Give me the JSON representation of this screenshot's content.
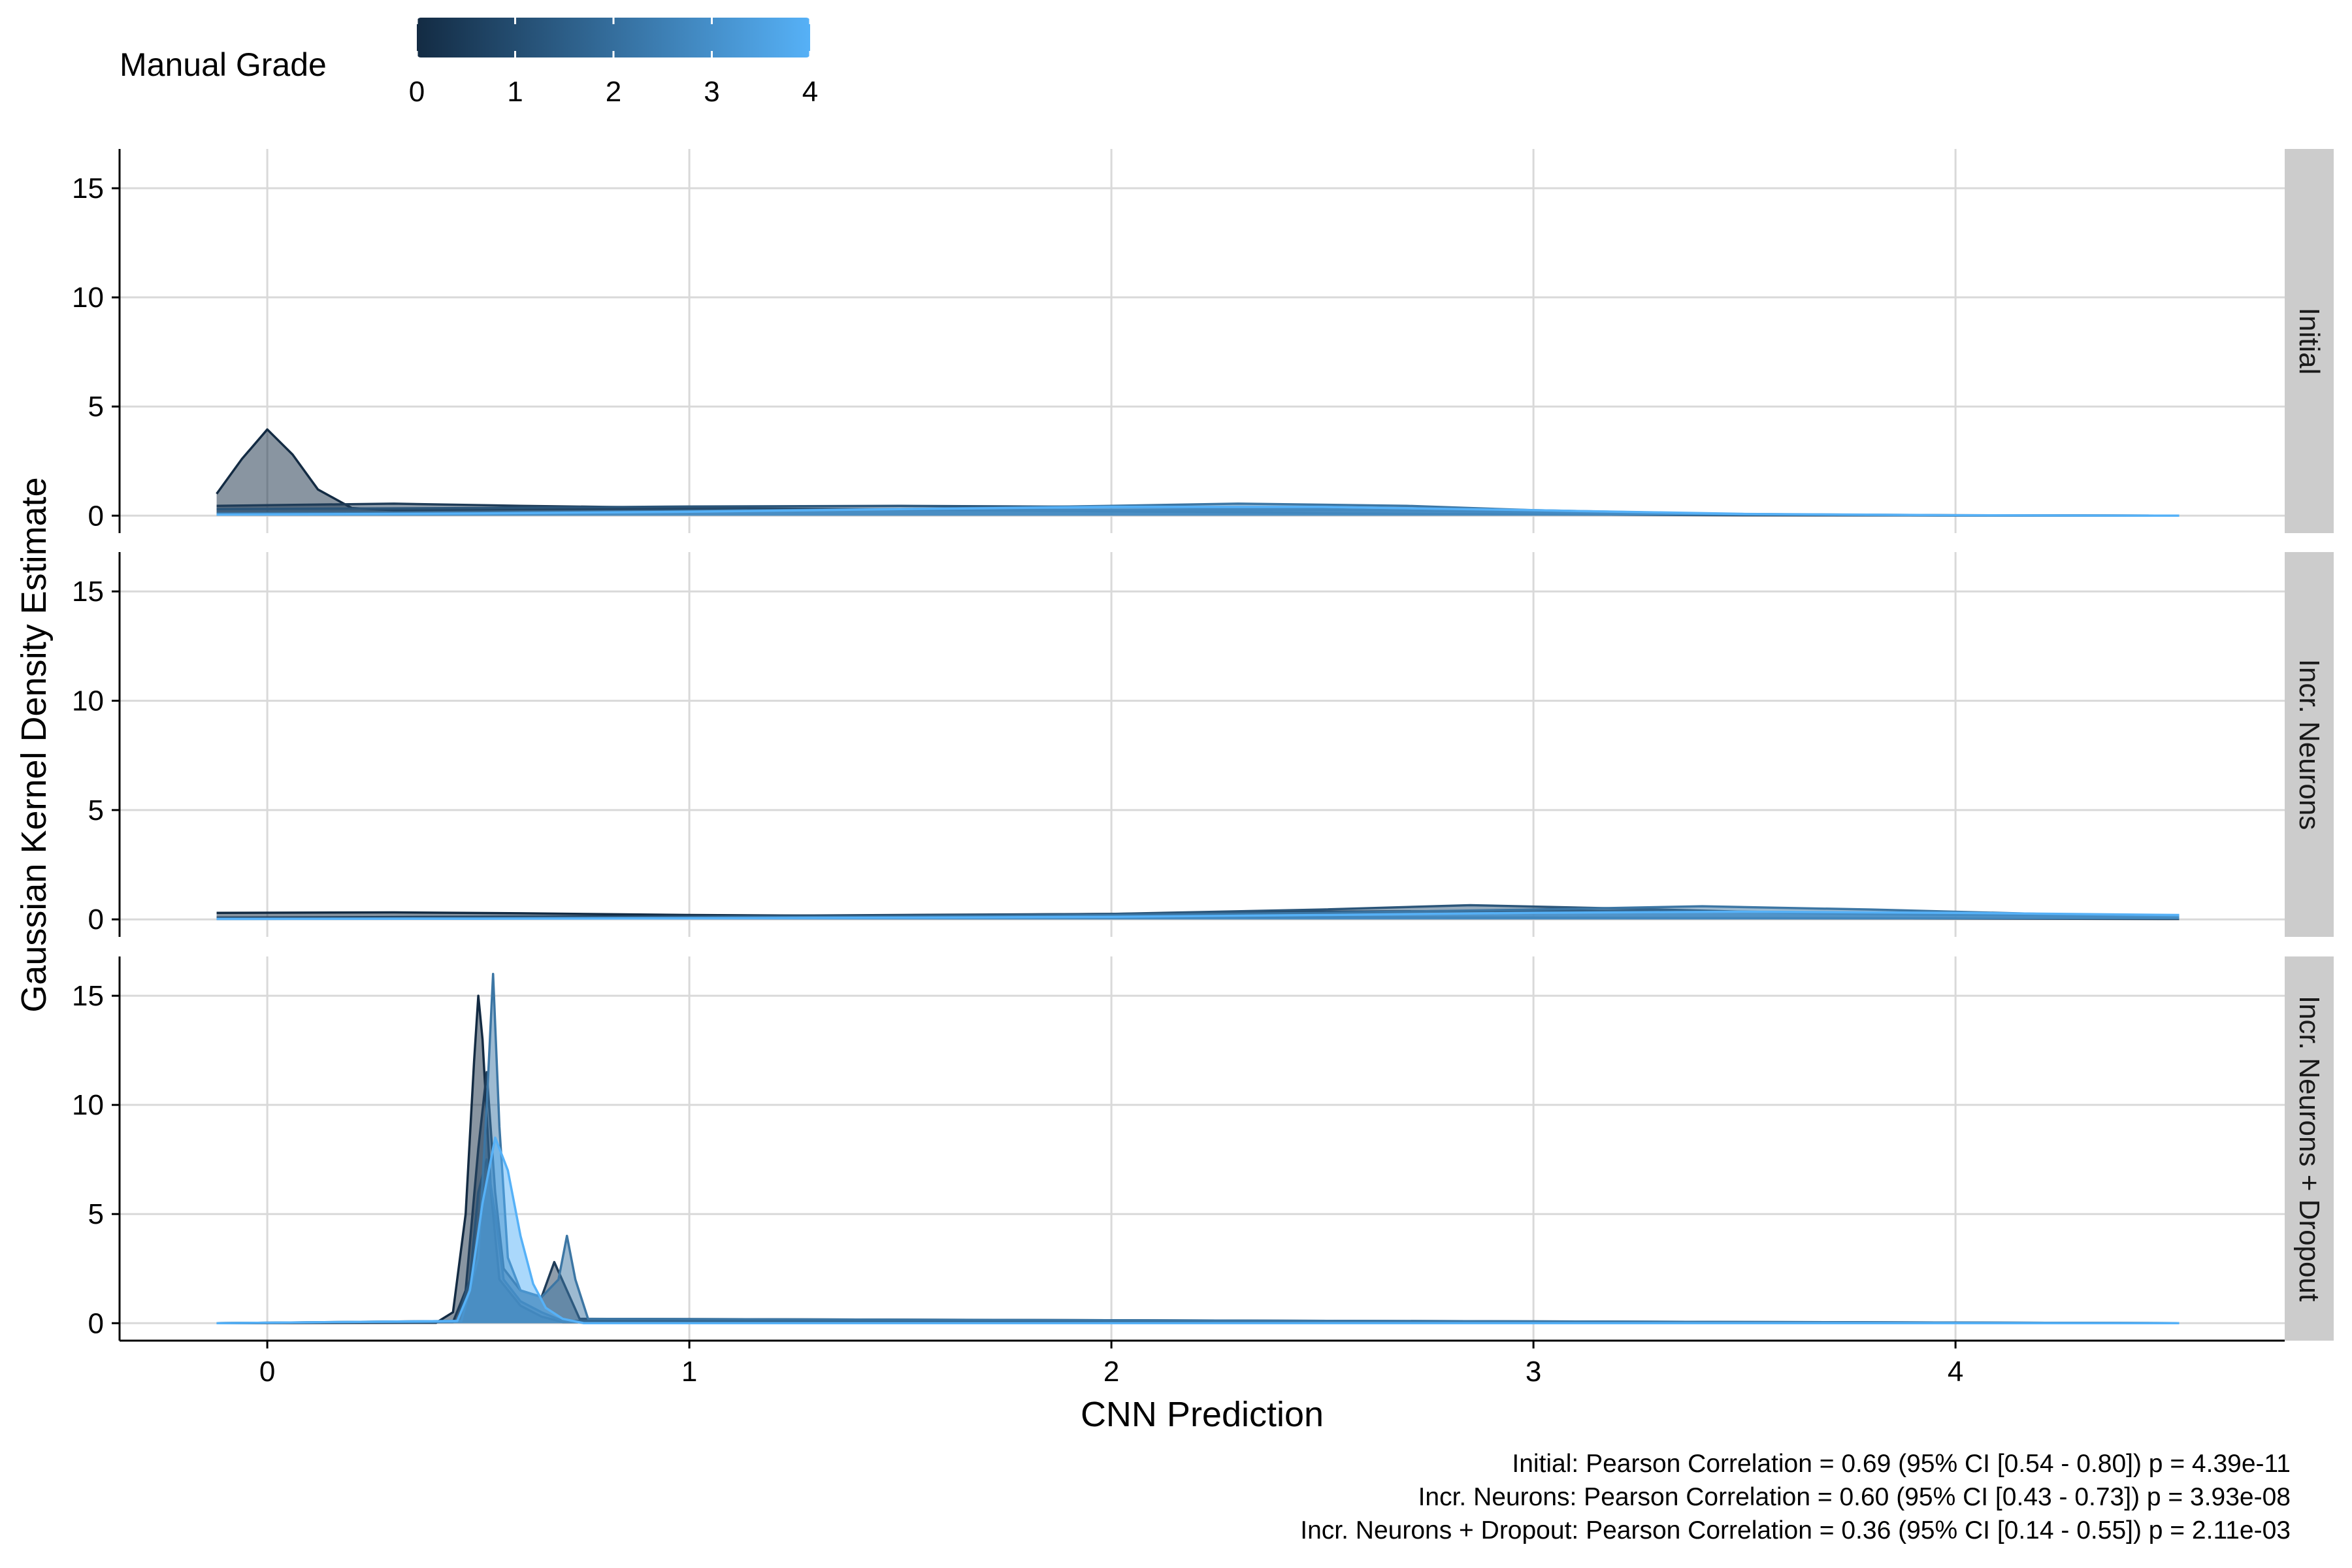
{
  "legend": {
    "title": "Manual Grade",
    "ticks": [
      "0",
      "1",
      "2",
      "3",
      "4"
    ],
    "color_low": "#132b43",
    "color_high": "#56b1f7"
  },
  "chart_data": {
    "type": "area",
    "subtype": "density (faceted)",
    "xlabel": "CNN Prediction",
    "ylabel": "Gaussian Kernel Density Estimate",
    "xlim": [
      -0.35,
      4.78
    ],
    "ylim": [
      -0.8,
      16.8
    ],
    "xticks": [
      0,
      1,
      2,
      3,
      4
    ],
    "yticks": [
      0,
      5,
      10,
      15
    ],
    "grid": true,
    "legend_position": "top-left",
    "facets": [
      {
        "label": "Initial",
        "series": [
          {
            "name": "0",
            "color": "#132b43",
            "x": [
              -0.12,
              -0.06,
              0.0,
              0.06,
              0.12,
              0.2,
              0.3,
              0.6,
              1.0,
              1.5,
              2.0,
              2.5,
              3.0,
              3.5,
              4.0,
              4.53
            ],
            "y": [
              1.0,
              2.6,
              3.95,
              2.8,
              1.2,
              0.35,
              0.25,
              0.3,
              0.32,
              0.28,
              0.2,
              0.12,
              0.06,
              0.02,
              0.01,
              0.0
            ]
          },
          {
            "name": "1",
            "color": "#1f3c58",
            "x": [
              -0.12,
              0.3,
              0.6,
              1.0,
              1.5,
              2.0,
              2.5,
              3.0,
              3.5,
              4.0,
              4.53
            ],
            "y": [
              0.45,
              0.55,
              0.45,
              0.35,
              0.28,
              0.25,
              0.25,
              0.18,
              0.07,
              0.02,
              0.0
            ]
          },
          {
            "name": "2",
            "color": "#2b5579",
            "x": [
              -0.12,
              0.5,
              1.0,
              1.5,
              2.0,
              2.5,
              3.0,
              3.5,
              4.0,
              4.53
            ],
            "y": [
              0.3,
              0.35,
              0.42,
              0.45,
              0.4,
              0.3,
              0.15,
              0.04,
              0.01,
              0.0
            ]
          },
          {
            "name": "3",
            "color": "#3c76a4",
            "x": [
              -0.12,
              0.5,
              1.0,
              1.5,
              2.0,
              2.3,
              2.7,
              3.0,
              3.5,
              4.0,
              4.53
            ],
            "y": [
              0.1,
              0.15,
              0.22,
              0.3,
              0.45,
              0.55,
              0.45,
              0.25,
              0.06,
              0.01,
              0.0
            ]
          },
          {
            "name": "4",
            "color": "#56b1f7",
            "x": [
              -0.12,
              0.5,
              1.0,
              1.5,
              2.0,
              2.5,
              3.0,
              3.5,
              4.0,
              4.53
            ],
            "y": [
              0.05,
              0.1,
              0.18,
              0.3,
              0.4,
              0.4,
              0.25,
              0.08,
              0.02,
              0.0
            ]
          }
        ]
      },
      {
        "label": "Incr. Neurons",
        "series": [
          {
            "name": "0",
            "color": "#132b43",
            "x": [
              -0.12,
              0.3,
              0.6,
              1.0,
              1.5,
              2.0,
              2.5,
              3.0,
              3.5,
              4.0,
              4.53
            ],
            "y": [
              0.3,
              0.32,
              0.28,
              0.2,
              0.15,
              0.12,
              0.1,
              0.08,
              0.06,
              0.04,
              0.02
            ]
          },
          {
            "name": "1",
            "color": "#1f3c58",
            "x": [
              -0.12,
              0.5,
              1.0,
              1.5,
              2.0,
              2.5,
              3.0,
              3.5,
              4.0,
              4.53
            ],
            "y": [
              0.08,
              0.12,
              0.15,
              0.2,
              0.25,
              0.35,
              0.4,
              0.35,
              0.25,
              0.15
            ]
          },
          {
            "name": "2",
            "color": "#2b5579",
            "x": [
              -0.12,
              0.5,
              1.0,
              1.5,
              2.0,
              2.5,
              2.85,
              3.2,
              3.6,
              4.0,
              4.53
            ],
            "y": [
              0.05,
              0.08,
              0.12,
              0.18,
              0.25,
              0.45,
              0.65,
              0.5,
              0.3,
              0.2,
              0.12
            ]
          },
          {
            "name": "3",
            "color": "#3c76a4",
            "x": [
              -0.12,
              0.5,
              1.0,
              1.5,
              2.0,
              2.5,
              3.0,
              3.4,
              3.8,
              4.2,
              4.53
            ],
            "y": [
              0.02,
              0.05,
              0.08,
              0.12,
              0.2,
              0.3,
              0.45,
              0.6,
              0.45,
              0.25,
              0.15
            ]
          },
          {
            "name": "4",
            "color": "#56b1f7",
            "x": [
              -0.12,
              0.5,
              1.0,
              1.5,
              2.0,
              2.5,
              3.0,
              3.5,
              4.0,
              4.53
            ],
            "y": [
              0.02,
              0.03,
              0.05,
              0.08,
              0.12,
              0.2,
              0.3,
              0.35,
              0.3,
              0.2
            ]
          }
        ]
      },
      {
        "label": "Incr. Neurons + Dropout",
        "series": [
          {
            "name": "0",
            "color": "#132b43",
            "x": [
              -0.12,
              0.4,
              0.44,
              0.47,
              0.49,
              0.5,
              0.51,
              0.53,
              0.55,
              0.6,
              0.65,
              0.7,
              4.53
            ],
            "y": [
              0.0,
              0.02,
              0.5,
              5.0,
              12.0,
              15.0,
              13.0,
              6.0,
              2.0,
              0.8,
              0.3,
              0.05,
              0.0
            ]
          },
          {
            "name": "1",
            "color": "#1f3c58",
            "x": [
              -0.12,
              0.44,
              0.47,
              0.5,
              0.52,
              0.54,
              0.56,
              0.6,
              0.65,
              0.68,
              0.71,
              0.74,
              4.53
            ],
            "y": [
              0.0,
              0.05,
              1.5,
              8.0,
              11.5,
              6.0,
              2.5,
              1.5,
              1.2,
              2.8,
              1.5,
              0.2,
              0.0
            ]
          },
          {
            "name": "2",
            "color": "#2b5579",
            "x": [
              -0.12,
              0.45,
              0.48,
              0.5,
              0.52,
              0.54,
              0.56,
              0.6,
              0.65,
              0.7,
              4.53
            ],
            "y": [
              0.0,
              0.1,
              2.0,
              6.0,
              7.5,
              5.0,
              2.0,
              1.0,
              0.5,
              0.1,
              0.0
            ]
          },
          {
            "name": "3",
            "color": "#3c76a4",
            "x": [
              -0.12,
              0.46,
              0.5,
              0.52,
              0.535,
              0.55,
              0.57,
              0.6,
              0.65,
              0.69,
              0.71,
              0.73,
              0.76,
              4.53
            ],
            "y": [
              0.0,
              0.1,
              3.0,
              10.0,
              16.0,
              9.0,
              3.0,
              1.5,
              1.2,
              2.0,
              4.0,
              2.0,
              0.2,
              0.0
            ]
          },
          {
            "name": "4",
            "color": "#56b1f7",
            "x": [
              -0.12,
              0.45,
              0.48,
              0.51,
              0.54,
              0.57,
              0.6,
              0.63,
              0.66,
              0.7,
              0.75,
              4.53
            ],
            "y": [
              0.0,
              0.1,
              1.5,
              5.5,
              8.5,
              7.0,
              4.0,
              1.8,
              0.7,
              0.2,
              0.0,
              0.0
            ]
          }
        ]
      }
    ]
  },
  "caption": {
    "lines": [
      "Initial: Pearson Correlation = 0.69 (95% CI [0.54 - 0.80]) p = 4.39e-11",
      "Incr. Neurons: Pearson Correlation = 0.60 (95% CI [0.43 - 0.73]) p = 3.93e-08",
      "Incr. Neurons + Dropout: Pearson Correlation = 0.36 (95% CI [0.14 - 0.55]) p = 2.11e-03"
    ]
  }
}
